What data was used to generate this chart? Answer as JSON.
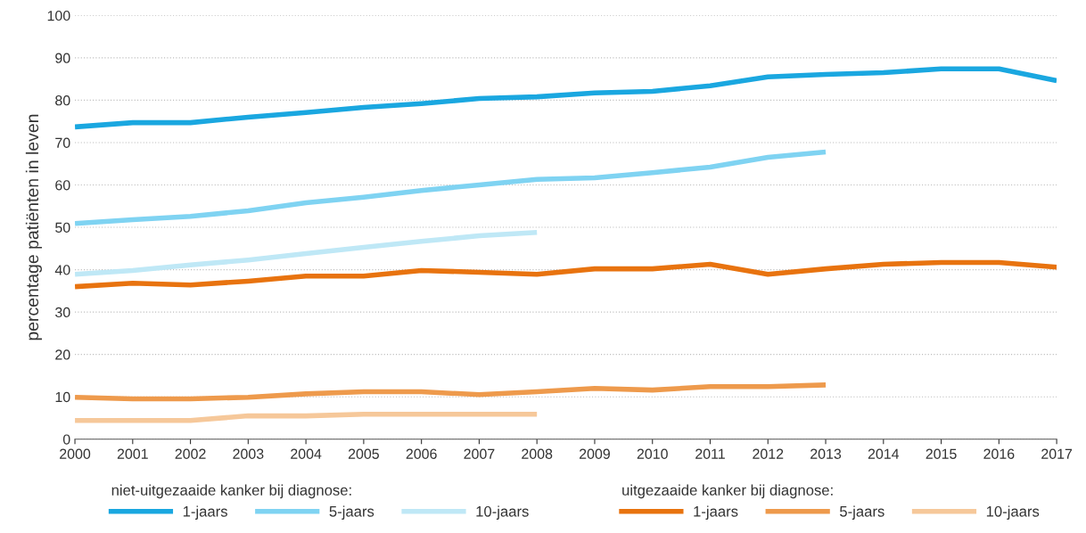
{
  "chart_data": {
    "type": "line",
    "ylabel": "percentage patiënten in leven",
    "x": [
      2000,
      2001,
      2002,
      2003,
      2004,
      2005,
      2006,
      2007,
      2008,
      2009,
      2010,
      2011,
      2012,
      2013,
      2014,
      2015,
      2016,
      2017
    ],
    "xlim": [
      2000,
      2017
    ],
    "xticks": [
      2000,
      2001,
      2002,
      2003,
      2004,
      2005,
      2006,
      2007,
      2008,
      2009,
      2010,
      2011,
      2012,
      2013,
      2014,
      2015,
      2016,
      2017
    ],
    "ylim": [
      0,
      100
    ],
    "yticks": [
      0,
      10,
      20,
      30,
      40,
      50,
      60,
      70,
      80,
      90,
      100
    ],
    "grid": "y",
    "legend": "bottom",
    "marker": "none",
    "line_style": "solid",
    "annotations": [
      "niet-uitgezaaide kanker bij diagnose:",
      "uitgezaaide kanker bij diagnose:"
    ],
    "series": [
      {
        "name": "1-jaars",
        "color": "#1aa7e0",
        "values": [
          73.7,
          74.7,
          74.7,
          76.0,
          77.1,
          78.3,
          79.2,
          80.4,
          80.8,
          81.7,
          82.1,
          83.4,
          85.5,
          86.1,
          86.5,
          87.4,
          87.4,
          84.6
        ]
      },
      {
        "name": "5-jaars",
        "color": "#7fd3f2",
        "values": [
          50.9,
          51.8,
          52.6,
          53.9,
          55.8,
          57.1,
          58.7,
          60.0,
          61.3,
          61.7,
          62.9,
          64.2,
          66.5,
          67.8,
          null,
          null,
          null,
          null
        ]
      },
      {
        "name": "10-jaars",
        "color": "#bfe8f6",
        "values": [
          38.9,
          39.8,
          41.1,
          42.3,
          43.8,
          45.3,
          46.7,
          48.0,
          48.8,
          null,
          null,
          null,
          null,
          null,
          null,
          null,
          null,
          null
        ]
      },
      {
        "name": "1-jaars",
        "color": "#e8730f",
        "values": [
          36.0,
          36.8,
          36.4,
          37.3,
          38.5,
          38.5,
          39.8,
          39.4,
          38.9,
          40.2,
          40.2,
          41.3,
          38.9,
          40.2,
          41.3,
          41.7,
          41.7,
          40.6
        ]
      },
      {
        "name": "5-jaars",
        "color": "#ee9a4c",
        "values": [
          9.9,
          9.5,
          9.5,
          9.9,
          10.7,
          11.2,
          11.2,
          10.5,
          11.2,
          12.0,
          11.6,
          12.4,
          12.4,
          12.8,
          null,
          null,
          null,
          null
        ]
      },
      {
        "name": "10-jaars",
        "color": "#f6c89a",
        "values": [
          4.4,
          4.4,
          4.4,
          5.5,
          5.5,
          5.9,
          5.9,
          5.9,
          5.9,
          null,
          null,
          null,
          null,
          null,
          null,
          null,
          null,
          null
        ]
      }
    ]
  }
}
